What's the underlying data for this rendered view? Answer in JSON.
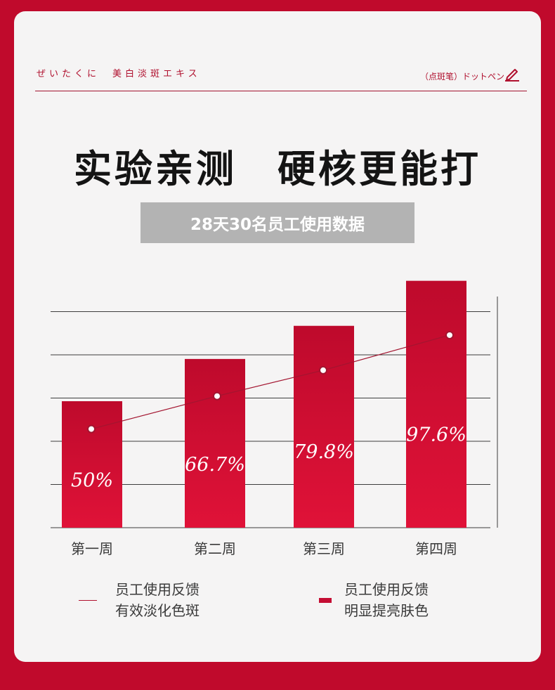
{
  "header": {
    "brand": "ぜいたくに　美白淡斑エキス",
    "product": "（点斑笔）ドットペン",
    "icon": "pen-icon"
  },
  "headline": "实验亲测　硬核更能打",
  "subtitle": "28天30名员工使用数据",
  "colors": {
    "background": "#c00a2c",
    "card": "#f5f4f4",
    "bar_top": "#be0a2c",
    "bar_bottom": "#e01238",
    "line": "#a31530"
  },
  "chart_data": {
    "type": "bar",
    "categories": [
      "第一周",
      "第二周",
      "第三周",
      "第四周"
    ],
    "bar_series": {
      "name": "员工使用反馈明显提亮肤色",
      "values": [
        50,
        66.7,
        79.8,
        97.6
      ]
    },
    "line_series": {
      "name": "员工使用反馈有效淡化色斑",
      "values": [
        50,
        66.7,
        79.8,
        97.6
      ]
    },
    "data_labels": [
      "50%",
      "66.7%",
      "79.8%",
      "97.6%"
    ],
    "ylim": [
      0,
      100
    ],
    "grid": true,
    "legend_position": "bottom"
  },
  "legend": [
    {
      "swatch": "line",
      "lines": [
        "员工使用反馈",
        "有效淡化色斑"
      ]
    },
    {
      "swatch": "bar",
      "lines": [
        "员工使用反馈",
        "明显提亮肤色"
      ]
    }
  ]
}
